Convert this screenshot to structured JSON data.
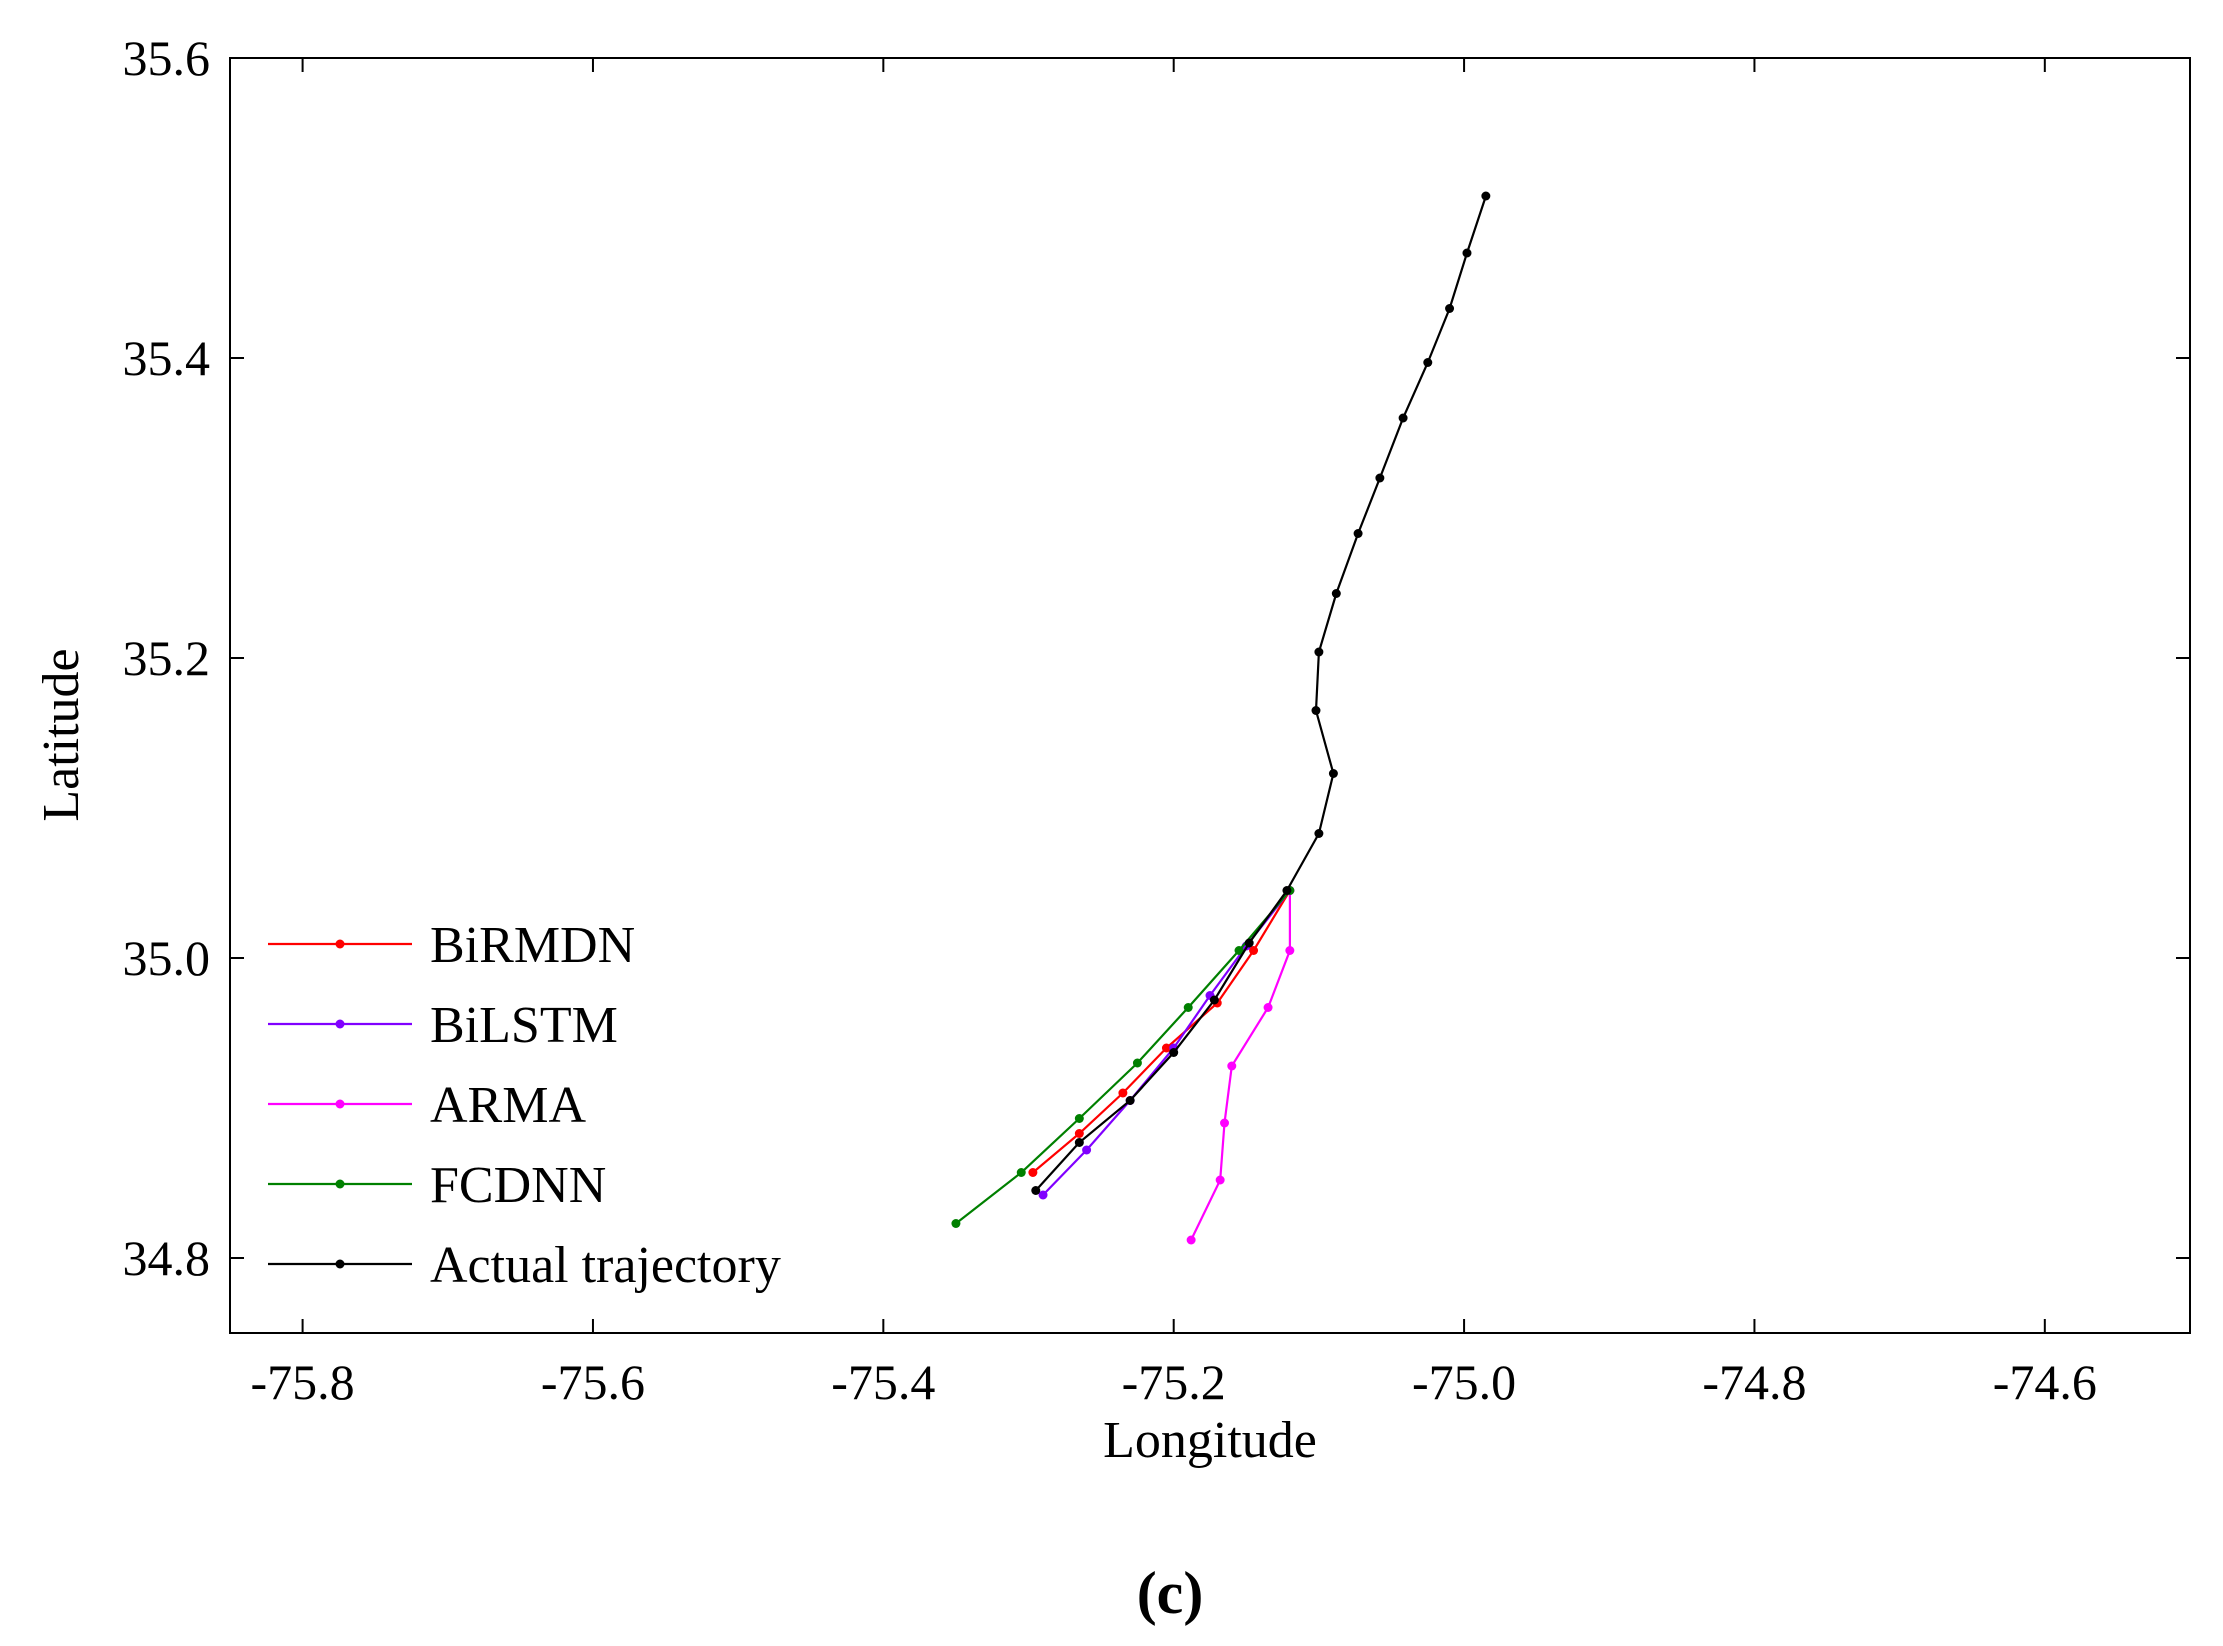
{
  "chart_data": {
    "type": "line",
    "xlabel": "Longitude",
    "ylabel": "Latitude",
    "xlim": [
      -75.85,
      -74.5
    ],
    "ylim": [
      34.75,
      35.6
    ],
    "x_ticks": [
      -75.8,
      -75.6,
      -75.4,
      -75.2,
      -75.0,
      -74.8,
      -74.6
    ],
    "x_tick_labels": [
      "-75.8",
      "-75.6",
      "-75.4",
      "-75.2",
      "-75.0",
      "-74.8",
      "-74.6"
    ],
    "y_ticks": [
      34.8,
      35.0,
      35.2,
      35.4,
      35.6
    ],
    "y_tick_labels": [
      "34.8",
      "35.0",
      "35.2",
      "35.4",
      "35.6"
    ],
    "grid": false,
    "legend_position": "bottom-left",
    "caption": "(c)",
    "series": [
      {
        "name": "BiRMDN",
        "color": "#ff0000",
        "points": [
          [
            -75.12,
            35.045
          ],
          [
            -75.145,
            35.005
          ],
          [
            -75.17,
            34.97
          ],
          [
            -75.205,
            34.94
          ],
          [
            -75.235,
            34.91
          ],
          [
            -75.265,
            34.883
          ],
          [
            -75.297,
            34.857
          ]
        ]
      },
      {
        "name": "BiLSTM",
        "color": "#8000ff",
        "points": [
          [
            -75.12,
            35.045
          ],
          [
            -75.15,
            35.008
          ],
          [
            -75.175,
            34.975
          ],
          [
            -75.2,
            34.94
          ],
          [
            -75.23,
            34.905
          ],
          [
            -75.26,
            34.872
          ],
          [
            -75.29,
            34.842
          ]
        ]
      },
      {
        "name": "ARMA",
        "color": "#ff00ff",
        "points": [
          [
            -75.12,
            35.045
          ],
          [
            -75.12,
            35.005
          ],
          [
            -75.135,
            34.967
          ],
          [
            -75.16,
            34.928
          ],
          [
            -75.165,
            34.89
          ],
          [
            -75.168,
            34.852
          ],
          [
            -75.188,
            34.812
          ]
        ]
      },
      {
        "name": "FCDNN",
        "color": "#008000",
        "points": [
          [
            -75.12,
            35.045
          ],
          [
            -75.155,
            35.005
          ],
          [
            -75.19,
            34.967
          ],
          [
            -75.225,
            34.93
          ],
          [
            -75.265,
            34.893
          ],
          [
            -75.305,
            34.857
          ],
          [
            -75.35,
            34.823
          ]
        ]
      },
      {
        "name": "Actual trajectory",
        "color": "#000000",
        "points": [
          [
            -74.985,
            35.508
          ],
          [
            -74.998,
            35.47
          ],
          [
            -75.01,
            35.433
          ],
          [
            -75.025,
            35.397
          ],
          [
            -75.042,
            35.36
          ],
          [
            -75.058,
            35.32
          ],
          [
            -75.073,
            35.283
          ],
          [
            -75.088,
            35.243
          ],
          [
            -75.1,
            35.204
          ],
          [
            -75.102,
            35.165
          ],
          [
            -75.09,
            35.123
          ],
          [
            -75.1,
            35.083
          ],
          [
            -75.122,
            35.045
          ],
          [
            -75.148,
            35.01
          ],
          [
            -75.172,
            34.972
          ],
          [
            -75.2,
            34.937
          ],
          [
            -75.23,
            34.905
          ],
          [
            -75.265,
            34.877
          ],
          [
            -75.295,
            34.845
          ]
        ]
      }
    ]
  }
}
